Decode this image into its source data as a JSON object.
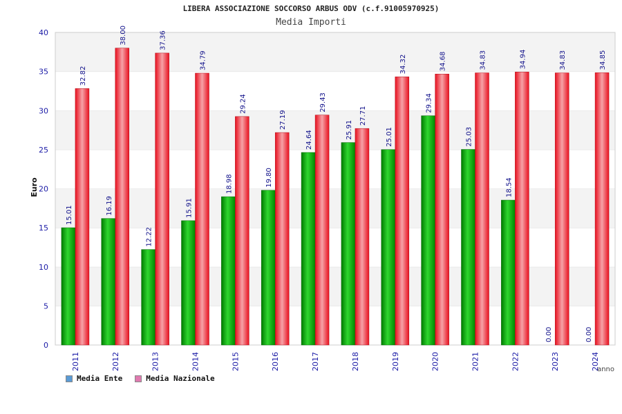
{
  "chart_data": {
    "type": "bar",
    "title": "LIBERA ASSOCIAZIONE SOCCORSO ARBUS ODV (c.f.91005970925)",
    "subtitle": "Media Importi",
    "xlabel": "anno",
    "ylabel": "Euro",
    "ylim": [
      0,
      40
    ],
    "yticks": [
      "0",
      "5",
      "10",
      "15",
      "20",
      "25",
      "30",
      "35",
      "40"
    ],
    "categories": [
      "2011",
      "2012",
      "2013",
      "2014",
      "2015",
      "2016",
      "2017",
      "2018",
      "2019",
      "2020",
      "2021",
      "2022",
      "2023",
      "2024"
    ],
    "series": [
      {
        "name": "Media Ente",
        "color": "#00b400",
        "values": [
          15.01,
          16.19,
          12.22,
          15.91,
          18.98,
          19.8,
          24.64,
          25.91,
          25.01,
          29.34,
          25.03,
          18.54,
          0.0,
          0.0
        ],
        "labels": [
          "15.01",
          "16.19",
          "12.22",
          "15.91",
          "18.98",
          "19.80",
          "24.64",
          "25.91",
          "25.01",
          "29.34",
          "25.03",
          "18.54",
          "0.00",
          "0.00"
        ]
      },
      {
        "name": "Media Nazionale",
        "color": "#ee1c25",
        "values": [
          32.82,
          38.0,
          37.36,
          34.79,
          29.24,
          27.19,
          29.43,
          27.71,
          34.32,
          34.68,
          34.83,
          34.94,
          34.83,
          34.85
        ],
        "labels": [
          "32.82",
          "38.00",
          "37.36",
          "34.79",
          "29.24",
          "27.19",
          "29.43",
          "27.71",
          "34.32",
          "34.68",
          "34.83",
          "34.94",
          "34.83",
          "34.85"
        ]
      }
    ],
    "legend": [
      {
        "label": "Media Ente",
        "color": "#5b9bd5"
      },
      {
        "label": "Media Nazionale",
        "color": "#e07ab0"
      }
    ],
    "grid": true,
    "legend_position": "bottom-left"
  }
}
